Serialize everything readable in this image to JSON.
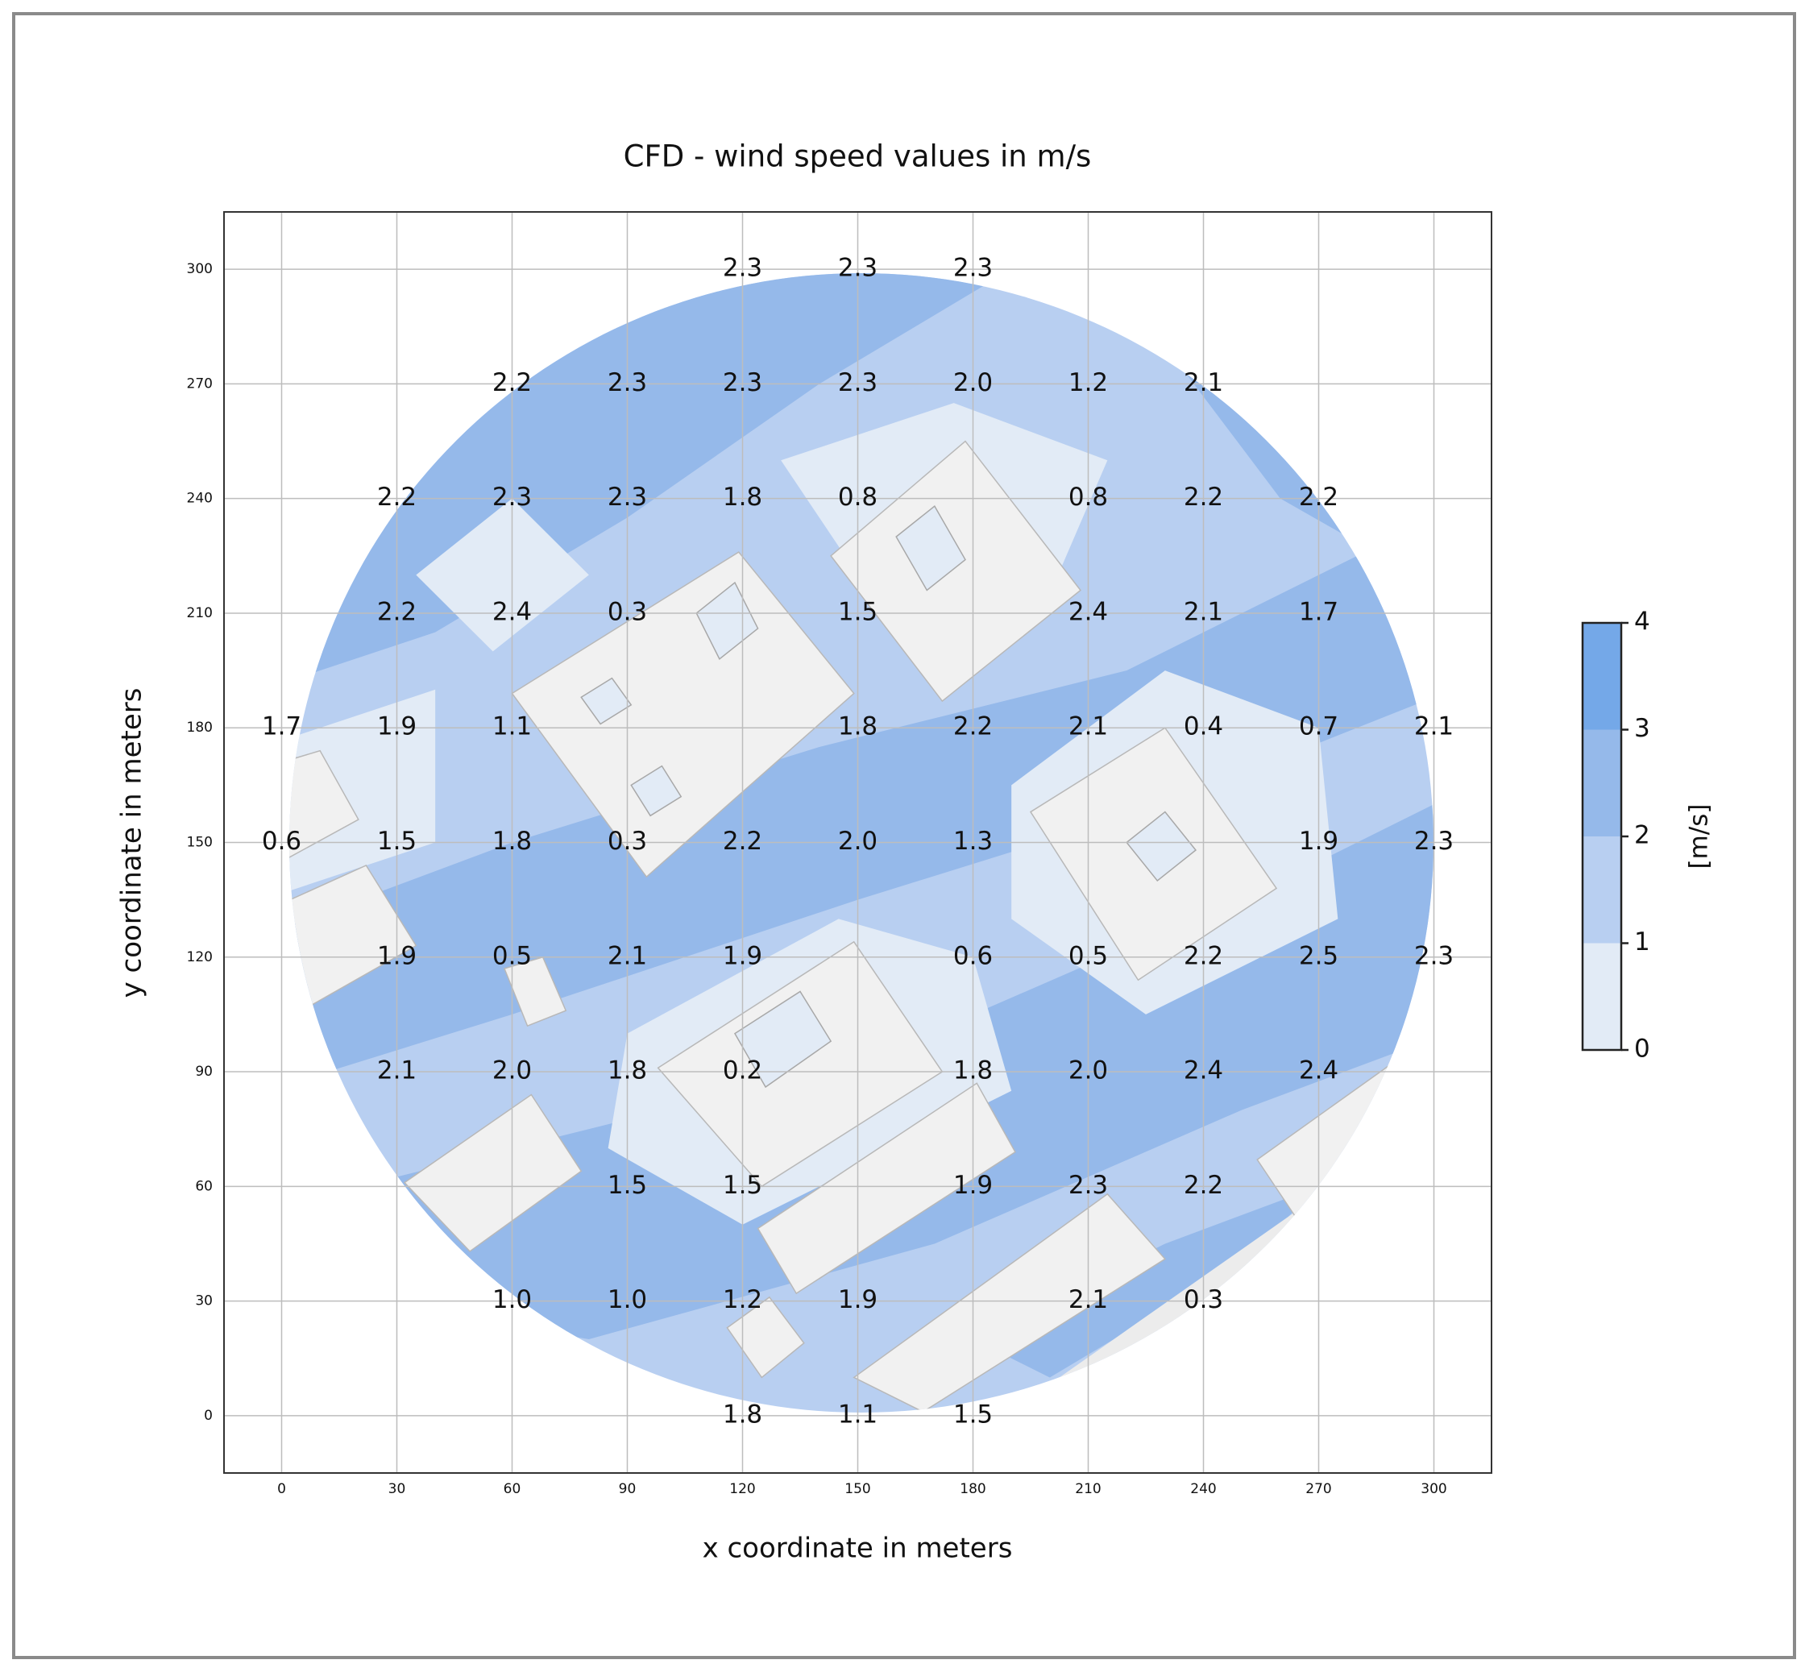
{
  "chart_data": {
    "type": "scatter",
    "title": "CFD - wind speed values in m/s",
    "x_label": "x coordinate in meters",
    "y_label": "y coordinate in meters",
    "xlim": [
      -15,
      315
    ],
    "ylim": [
      -15,
      315
    ],
    "xticks": [
      0,
      30,
      60,
      90,
      120,
      150,
      180,
      210,
      240,
      270,
      300
    ],
    "yticks": [
      0,
      30,
      60,
      90,
      120,
      150,
      180,
      210,
      240,
      270,
      300
    ],
    "grid": true,
    "x": [
      120,
      150,
      180,
      60,
      90,
      120,
      150,
      180,
      210,
      240,
      30,
      60,
      90,
      120,
      150,
      210,
      240,
      270,
      30,
      60,
      90,
      150,
      210,
      240,
      270,
      0,
      30,
      60,
      150,
      180,
      210,
      240,
      270,
      300,
      0,
      30,
      60,
      90,
      120,
      150,
      180,
      270,
      300,
      30,
      60,
      90,
      120,
      180,
      210,
      240,
      270,
      300,
      30,
      60,
      90,
      120,
      180,
      210,
      240,
      270,
      90,
      120,
      180,
      210,
      240,
      60,
      90,
      120,
      150,
      210,
      240,
      120,
      150,
      180
    ],
    "y": [
      300,
      300,
      300,
      270,
      270,
      270,
      270,
      270,
      270,
      270,
      240,
      240,
      240,
      240,
      240,
      240,
      240,
      240,
      210,
      210,
      210,
      210,
      210,
      210,
      210,
      180,
      180,
      180,
      180,
      180,
      180,
      180,
      180,
      180,
      150,
      150,
      150,
      150,
      150,
      150,
      150,
      150,
      150,
      120,
      120,
      120,
      120,
      120,
      120,
      120,
      120,
      120,
      90,
      90,
      90,
      90,
      90,
      90,
      90,
      90,
      60,
      60,
      60,
      60,
      60,
      30,
      30,
      30,
      30,
      30,
      30,
      0,
      0,
      0
    ],
    "values": [
      2.3,
      2.3,
      2.3,
      2.2,
      2.3,
      2.3,
      2.3,
      2.0,
      1.2,
      2.1,
      2.2,
      2.3,
      2.3,
      1.8,
      0.8,
      0.8,
      2.2,
      2.2,
      2.2,
      2.4,
      0.3,
      1.5,
      2.4,
      2.1,
      1.7,
      1.7,
      1.9,
      1.1,
      1.8,
      2.2,
      2.1,
      0.4,
      0.7,
      2.1,
      0.6,
      1.5,
      1.8,
      0.3,
      2.2,
      2.0,
      1.3,
      1.9,
      2.3,
      1.9,
      0.5,
      2.1,
      1.9,
      0.6,
      0.5,
      2.2,
      2.5,
      2.3,
      2.1,
      2.0,
      1.8,
      0.2,
      1.8,
      2.0,
      2.4,
      2.4,
      1.5,
      1.5,
      1.9,
      2.3,
      2.2,
      1.0,
      1.0,
      1.2,
      1.9,
      2.1,
      0.3,
      1.8,
      1.1,
      1.5
    ],
    "value_labels": [
      "2.3",
      "2.3",
      "2.3",
      "2.2",
      "2.3",
      "2.3",
      "2.3",
      "2.0",
      "1.2",
      "2.1",
      "2.2",
      "2.3",
      "2.3",
      "1.8",
      "0.8",
      "0.8",
      "2.2",
      "2.2",
      "2.2",
      "2.4",
      "0.3",
      "1.5",
      "2.4",
      "2.1",
      "1.7",
      "1.7",
      "1.9",
      "1.1",
      "1.8",
      "2.2",
      "2.1",
      "0.4",
      "0.7",
      "2.1",
      "0.6",
      "1.5",
      "1.8",
      "0.3",
      "2.2",
      "2.0",
      "1.3",
      "1.9",
      "2.3",
      "1.9",
      "0.5",
      "2.1",
      "1.9",
      "0.6",
      "0.5",
      "2.2",
      "2.5",
      "2.3",
      "2.1",
      "2.0",
      "1.8",
      "0.2",
      "1.8",
      "2.0",
      "2.4",
      "2.4",
      "1.5",
      "1.5",
      "1.9",
      "2.3",
      "2.2",
      "1.0",
      "1.0",
      "1.2",
      "1.9",
      "2.1",
      "0.3",
      "1.8",
      "1.1",
      "1.5"
    ],
    "colorbar": {
      "label": "[m/s]",
      "lim": [
        0,
        4
      ],
      "ticks": [
        0,
        1,
        2,
        3,
        4
      ],
      "colors": [
        "#e2ebf6",
        "#b8cff1",
        "#95b9ea",
        "#74a8e8"
      ]
    }
  }
}
